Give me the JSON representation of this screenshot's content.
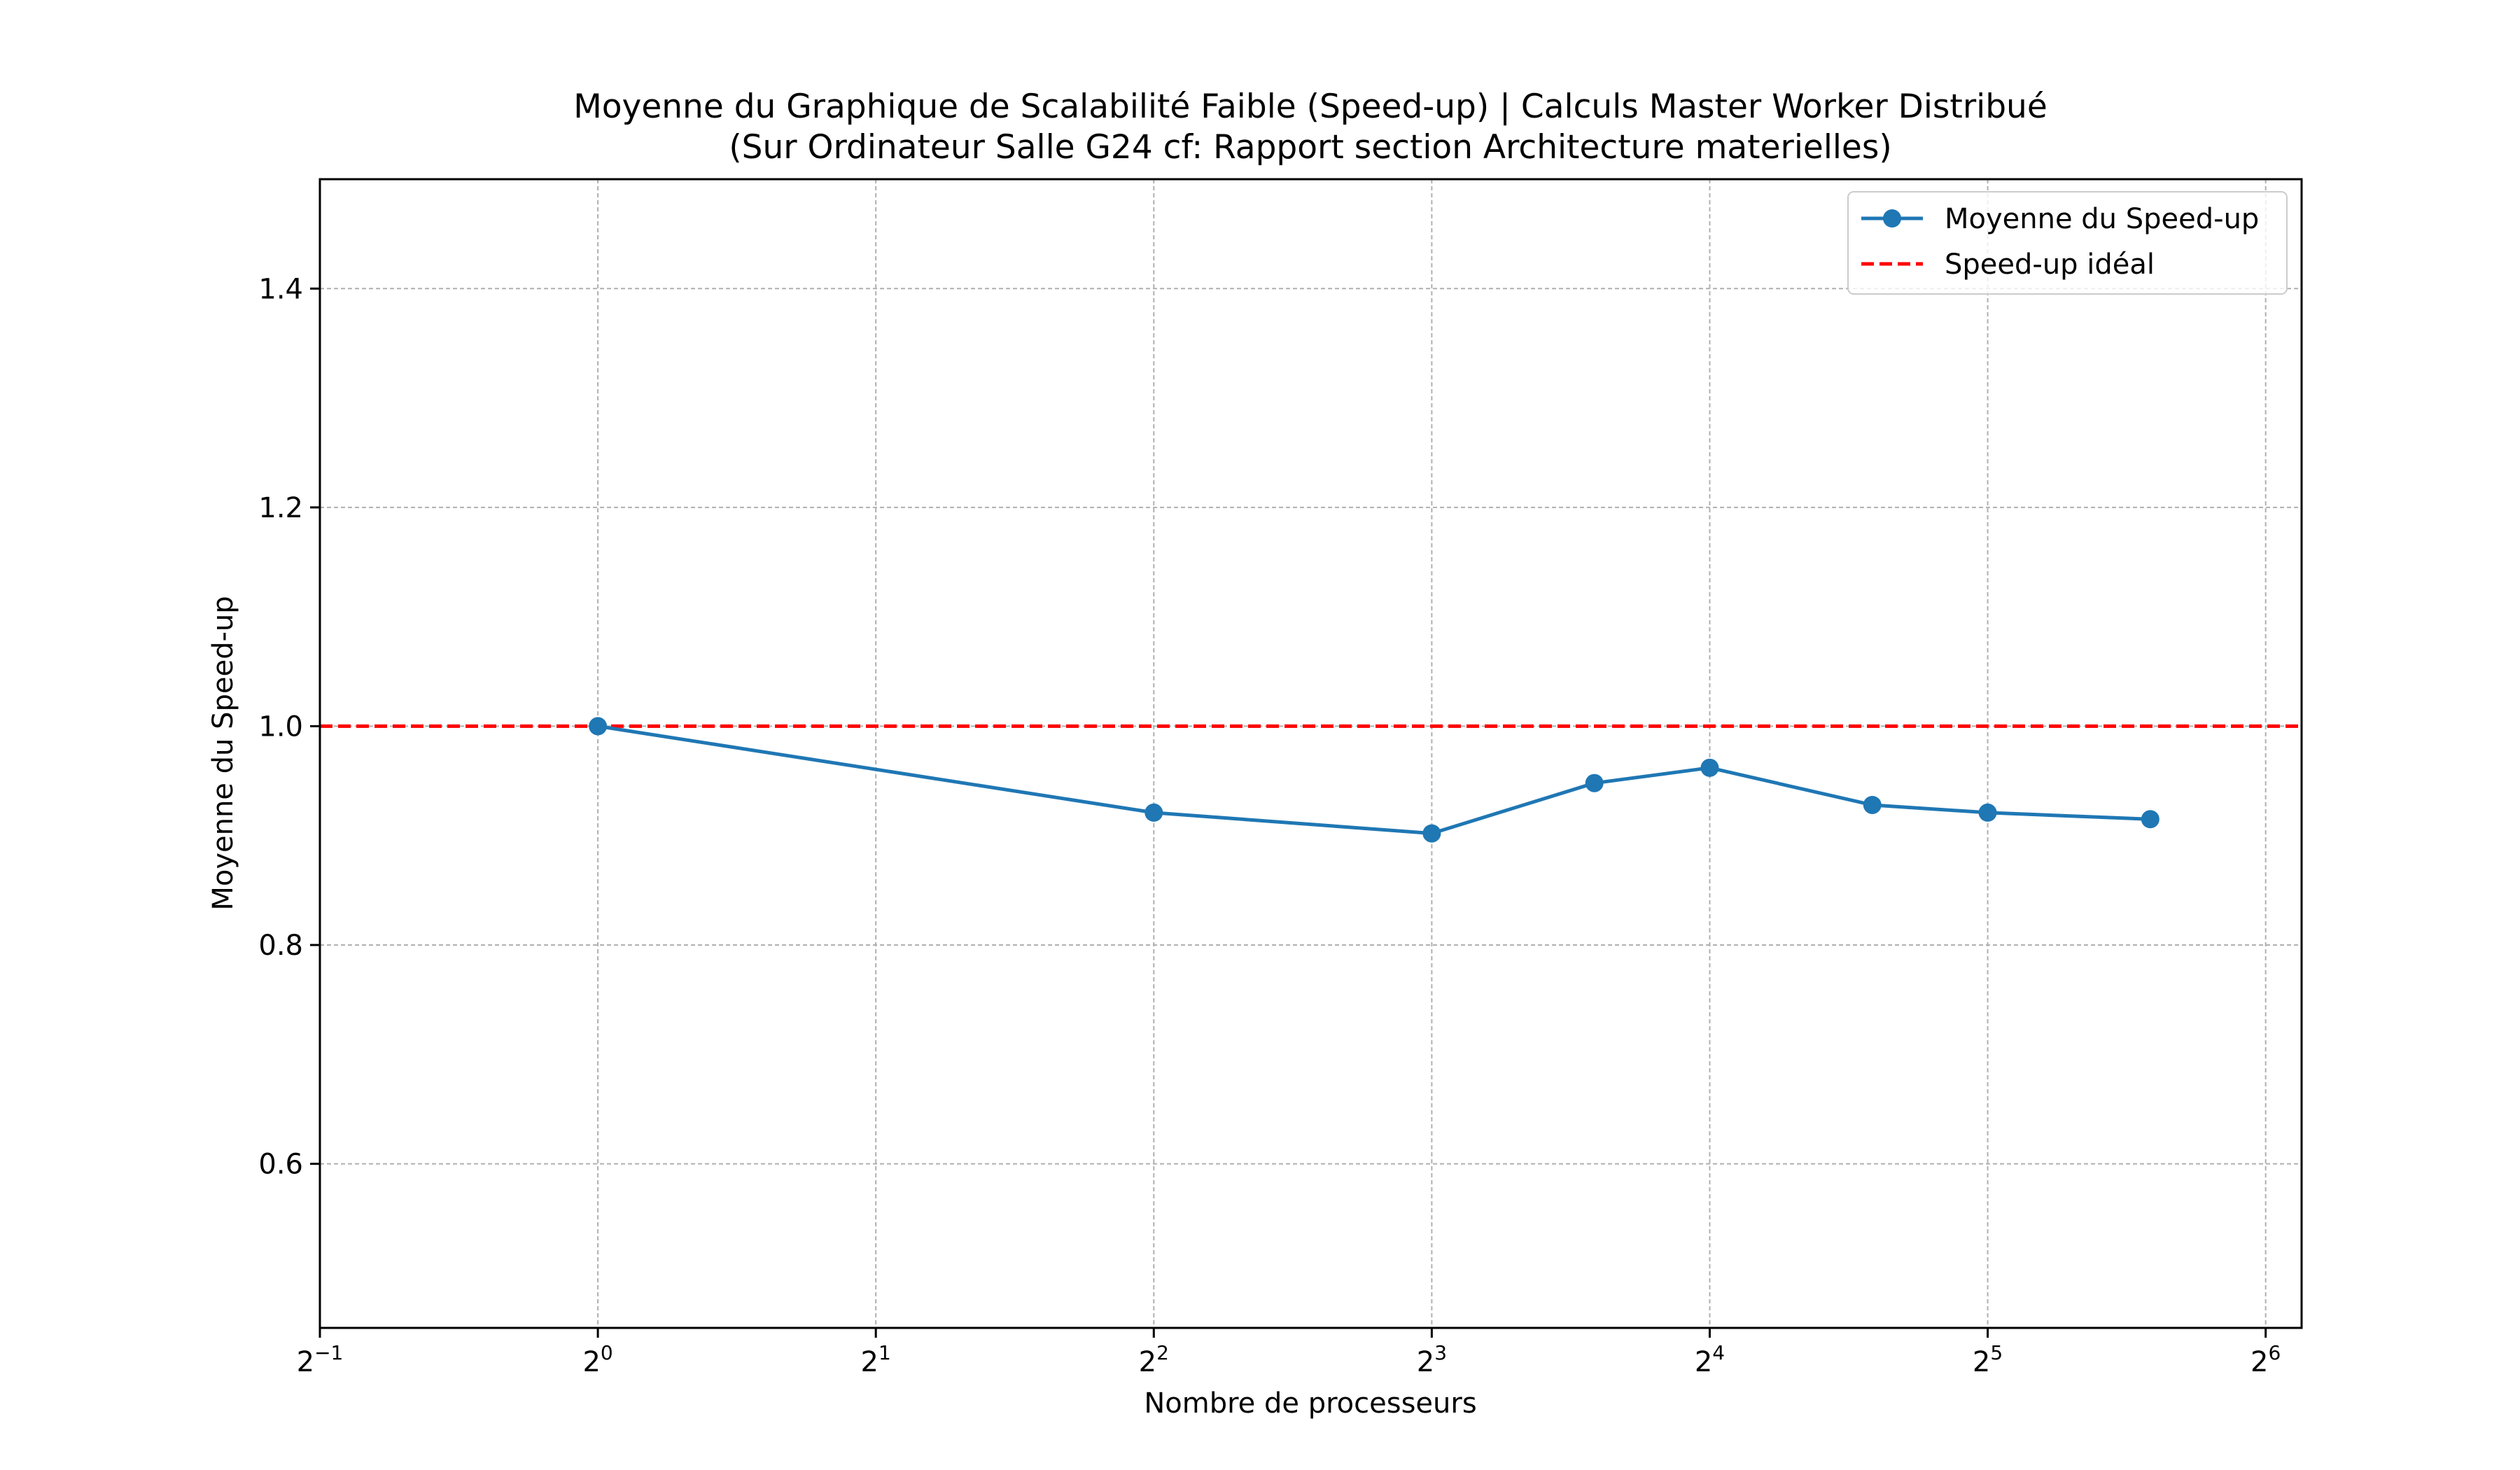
{
  "chart_data": {
    "type": "line",
    "title_line1": "Moyenne du Graphique de Scalabilité Faible (Speed-up) | Calculs Master Worker Distribué",
    "title_line2": "(Sur Ordinateur Salle G24 cf: Rapport section Architecture materielles)",
    "xlabel": "Nombre de processeurs",
    "ylabel": "Moyenne du Speed-up",
    "x_scale": "log2",
    "xlim": [
      0.5,
      70
    ],
    "ylim": [
      0.45,
      1.5
    ],
    "x_ticks": [
      {
        "value": 0.5,
        "base": "2",
        "exp": "−1"
      },
      {
        "value": 1,
        "base": "2",
        "exp": "0"
      },
      {
        "value": 2,
        "base": "2",
        "exp": "1"
      },
      {
        "value": 4,
        "base": "2",
        "exp": "2"
      },
      {
        "value": 8,
        "base": "2",
        "exp": "3"
      },
      {
        "value": 16,
        "base": "2",
        "exp": "4"
      },
      {
        "value": 32,
        "base": "2",
        "exp": "5"
      },
      {
        "value": 64,
        "base": "2",
        "exp": "6"
      }
    ],
    "y_ticks": [
      {
        "value": 0.6,
        "label": "0.6"
      },
      {
        "value": 0.8,
        "label": "0.8"
      },
      {
        "value": 1.0,
        "label": "1.0"
      },
      {
        "value": 1.2,
        "label": "1.2"
      },
      {
        "value": 1.4,
        "label": "1.4"
      }
    ],
    "grid": true,
    "legend_position": "top-right",
    "series": [
      {
        "name": "Moyenne du Speed-up",
        "color": "#1f77b4",
        "style": "solid-with-markers",
        "x": [
          1,
          4,
          8,
          12,
          16,
          24,
          32,
          48
        ],
        "y": [
          1.0,
          0.921,
          0.902,
          0.948,
          0.962,
          0.928,
          0.921,
          0.915
        ]
      },
      {
        "name": "Speed-up idéal",
        "color": "#ff0000",
        "style": "dashed-horizontal",
        "y": 1.0
      }
    ]
  }
}
